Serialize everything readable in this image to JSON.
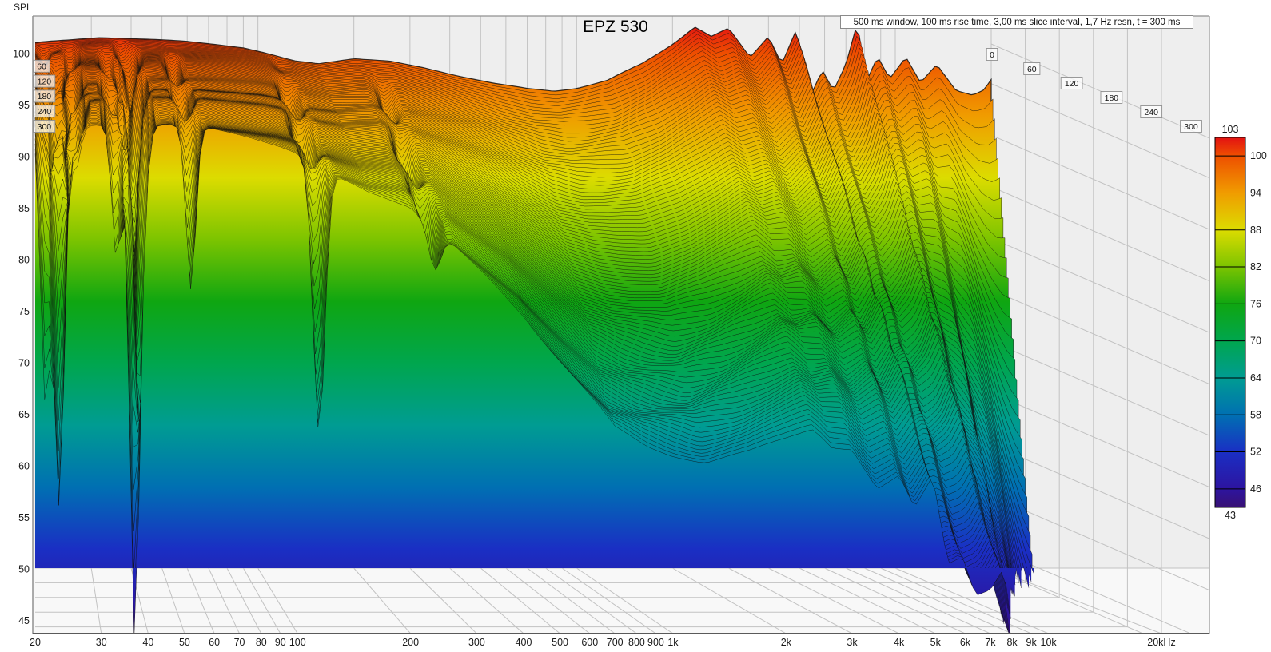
{
  "header": {
    "title": "EPZ 530",
    "spl_axis_label": "SPL",
    "annotation": "500 ms window, 100 ms rise time, 3,00 ms slice interval, 1,7 Hz resn, t = 300 ms"
  },
  "chart_data": {
    "type": "area",
    "variant": "cumulative_spectral_decay_waterfall_3d",
    "title": "EPZ 530",
    "ylabel": "SPL",
    "annotation": "500 ms window, 100 ms rise time, 3,00 ms slice interval, 1,7 Hz resn, t = 300 ms",
    "x_axis": {
      "scale": "log",
      "ticks": [
        {
          "f": 20,
          "label": "20"
        },
        {
          "f": 30,
          "label": "30"
        },
        {
          "f": 40,
          "label": "40"
        },
        {
          "f": 50,
          "label": "50"
        },
        {
          "f": 60,
          "label": "60"
        },
        {
          "f": 70,
          "label": "70"
        },
        {
          "f": 80,
          "label": "80"
        },
        {
          "f": 90,
          "label": "90"
        },
        {
          "f": 100,
          "label": "100"
        },
        {
          "f": 200,
          "label": "200"
        },
        {
          "f": 300,
          "label": "300"
        },
        {
          "f": 400,
          "label": "400"
        },
        {
          "f": 500,
          "label": "500"
        },
        {
          "f": 600,
          "label": "600"
        },
        {
          "f": 700,
          "label": "700"
        },
        {
          "f": 800,
          "label": "800"
        },
        {
          "f": 900,
          "label": "900"
        },
        {
          "f": 1000,
          "label": "1k"
        },
        {
          "f": 2000,
          "label": "2k"
        },
        {
          "f": 3000,
          "label": "3k"
        },
        {
          "f": 4000,
          "label": "4k"
        },
        {
          "f": 5000,
          "label": "5k"
        },
        {
          "f": 6000,
          "label": "6k"
        },
        {
          "f": 7000,
          "label": "7k"
        },
        {
          "f": 8000,
          "label": "8k"
        },
        {
          "f": 9000,
          "label": "9k"
        },
        {
          "f": 10000,
          "label": "10k"
        },
        {
          "f": 20000,
          "label": "20kHz"
        }
      ]
    },
    "y_axis": {
      "ticks": [
        100,
        95,
        90,
        85,
        80,
        75,
        70,
        65,
        60,
        55,
        50,
        45
      ]
    },
    "time_axis": {
      "start_ms": 0,
      "end_ms": 300,
      "slice_interval_ms": 3,
      "right_labels": [
        "0",
        "60",
        "120",
        "180",
        "240",
        "300"
      ],
      "left_labels": [
        "60",
        "120",
        "180",
        "240",
        "300"
      ]
    },
    "colorbar": {
      "min": 43,
      "max": 103,
      "top_label": "103",
      "bottom_label": "43",
      "tick_values": [
        100,
        94,
        88,
        82,
        76,
        70,
        64,
        58,
        52,
        46
      ],
      "stops": [
        {
          "spl": 103,
          "color": "#e31212"
        },
        {
          "spl": 100,
          "color": "#ee4f00"
        },
        {
          "spl": 94,
          "color": "#f09c00"
        },
        {
          "spl": 88,
          "color": "#dcdc00"
        },
        {
          "spl": 82,
          "color": "#7cc400"
        },
        {
          "spl": 76,
          "color": "#0fa611"
        },
        {
          "spl": 70,
          "color": "#00a64e"
        },
        {
          "spl": 64,
          "color": "#009c92"
        },
        {
          "spl": 58,
          "color": "#0070b2"
        },
        {
          "spl": 52,
          "color": "#1a2fc4"
        },
        {
          "spl": 46,
          "color": "#2d14a0"
        },
        {
          "spl": 43,
          "color": "#381173"
        }
      ]
    },
    "series": {
      "t0_response": {
        "frequencies_hz": [
          20,
          25,
          32,
          45,
          60,
          75,
          90,
          105,
          130,
          155,
          200,
          260,
          330,
          420,
          550,
          700,
          850,
          1000,
          1250,
          1600,
          2000,
          2350,
          2650,
          3000,
          3500,
          4000,
          4400,
          4900,
          5400,
          5900,
          6400,
          7000,
          7600,
          8100,
          8800,
          9600,
          10800,
          12000,
          13500,
          15500,
          17500,
          19000,
          20000
        ],
        "spl_db": [
          94.0,
          94.2,
          94.5,
          94.3,
          94.1,
          93.8,
          93.5,
          93.0,
          92.2,
          91.9,
          92.4,
          92.2,
          91.6,
          90.8,
          90.0,
          89.5,
          89.3,
          89.6,
          90.3,
          91.9,
          93.9,
          95.5,
          94.5,
          95.3,
          92.6,
          94.7,
          92.0,
          95.3,
          88.6,
          91.2,
          89.2,
          91.8,
          95.9,
          90.2,
          92.7,
          90.6,
          92.7,
          90.2,
          91.9,
          89.3,
          88.8,
          89.3,
          90.3
        ]
      },
      "decay_db_per_300ms": {
        "frequencies_hz": [
          20,
          50,
          100,
          200,
          400,
          700,
          1200,
          2500,
          5000,
          8000,
          11000,
          15000,
          20000
        ],
        "values": [
          0.5,
          1.2,
          3.0,
          7,
          16,
          26,
          30,
          32,
          36,
          48,
          75,
          120,
          185
        ]
      },
      "low_frequency_nulls": [
        {
          "f_hz": 21.3,
          "max_depth_db": 34,
          "phase": 0.4
        },
        {
          "f_hz": 23.2,
          "max_depth_db": 42,
          "phase": 2.2
        },
        {
          "f_hz": 25.6,
          "max_depth_db": 30,
          "phase": 5.0
        },
        {
          "f_hz": 33.0,
          "max_depth_db": 26,
          "phase": 3.1
        },
        {
          "f_hz": 36.8,
          "max_depth_db": 52,
          "phase": 0.9
        },
        {
          "f_hz": 38.9,
          "max_depth_db": 46,
          "phase": 4.2
        },
        {
          "f_hz": 52.0,
          "max_depth_db": 22,
          "phase": 2.6
        },
        {
          "f_hz": 114.0,
          "max_depth_db": 26,
          "phase": 1.6
        },
        {
          "f_hz": 232.0,
          "max_depth_db": 20,
          "phase": 3.9
        }
      ]
    }
  }
}
